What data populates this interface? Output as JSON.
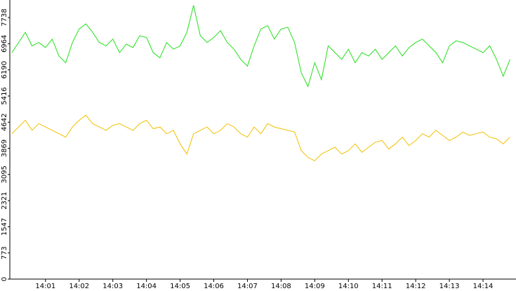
{
  "chart_data": {
    "type": "line",
    "x": [
      840,
      840.2,
      840.4,
      840.6,
      840.8,
      841,
      841.2,
      841.4,
      841.6,
      841.8,
      842,
      842.2,
      842.4,
      842.6,
      842.8,
      843,
      843.2,
      843.4,
      843.6,
      843.8,
      844,
      844.2,
      844.4,
      844.6,
      844.8,
      845,
      845.2,
      845.4,
      845.6,
      845.8,
      846,
      846.2,
      846.4,
      846.6,
      846.8,
      847,
      847.2,
      847.4,
      847.6,
      847.8,
      848,
      848.2,
      848.4,
      848.6,
      848.8,
      849,
      849.2,
      849.4,
      849.6,
      849.8,
      850,
      850.2,
      850.4,
      850.6,
      850.8,
      851,
      851.2,
      851.4,
      851.6,
      851.8,
      852,
      852.2,
      852.4,
      852.6,
      852.8,
      853,
      853.2,
      853.4,
      853.6,
      853.8,
      854,
      854.2,
      854.4,
      854.6,
      854.8
    ],
    "series": [
      {
        "color": "#22e01a",
        "values": [
          6700,
          7000,
          7300,
          6900,
          7000,
          6850,
          7100,
          6600,
          6400,
          7000,
          7400,
          7550,
          7300,
          7000,
          6900,
          7100,
          6700,
          6950,
          6850,
          7200,
          7150,
          6700,
          6550,
          7000,
          6800,
          6900,
          7300,
          8100,
          7200,
          7000,
          7150,
          7350,
          7000,
          6800,
          6500,
          6300,
          6900,
          7400,
          7500,
          7100,
          7400,
          7450,
          7000,
          6100,
          5700,
          6400,
          5900,
          6900,
          6700,
          6500,
          6800,
          6400,
          6700,
          6600,
          6800,
          6500,
          6700,
          6900,
          6600,
          6850,
          7000,
          7100,
          6900,
          6700,
          6400,
          6900,
          7050,
          7000,
          6900,
          6800,
          6700,
          6900,
          6500,
          6000,
          6500
        ]
      },
      {
        "color": "#f0c000",
        "values": [
          4300,
          4500,
          4700,
          4400,
          4600,
          4500,
          4400,
          4300,
          4200,
          4500,
          4700,
          4850,
          4600,
          4500,
          4400,
          4550,
          4600,
          4500,
          4400,
          4600,
          4700,
          4450,
          4500,
          4300,
          4400,
          4000,
          3700,
          4300,
          4400,
          4500,
          4300,
          4400,
          4600,
          4500,
          4300,
          4200,
          4500,
          4300,
          4600,
          4500,
          4450,
          4400,
          4350,
          3800,
          3600,
          3500,
          3700,
          3800,
          3900,
          3700,
          3800,
          4000,
          3750,
          3900,
          4050,
          4100,
          3850,
          4000,
          4200,
          3950,
          4100,
          4300,
          4200,
          4400,
          4250,
          4100,
          4200,
          4350,
          4250,
          4300,
          4350,
          4200,
          4150,
          4000,
          4200
        ]
      }
    ],
    "xlim": [
      839.94,
      854.98
    ],
    "xticks": [
      {
        "value": 841,
        "label": "14:01"
      },
      {
        "value": 842,
        "label": "14:02"
      },
      {
        "value": 843,
        "label": "14:03"
      },
      {
        "value": 844,
        "label": "14:04"
      },
      {
        "value": 845,
        "label": "14:05"
      },
      {
        "value": 846,
        "label": "14:06"
      },
      {
        "value": 847,
        "label": "14:07"
      },
      {
        "value": 848,
        "label": "14:08"
      },
      {
        "value": 849,
        "label": "14:09"
      },
      {
        "value": 850,
        "label": "14:10"
      },
      {
        "value": 851,
        "label": "14:11"
      },
      {
        "value": 852,
        "label": "14:12"
      },
      {
        "value": 853,
        "label": "14:13"
      },
      {
        "value": 854,
        "label": "14:14"
      }
    ],
    "ylim": [
      0,
      8257
    ],
    "yticks": [
      0,
      773,
      1547,
      2321,
      3095,
      3869,
      4642,
      5416,
      6190,
      6964,
      7738
    ]
  }
}
